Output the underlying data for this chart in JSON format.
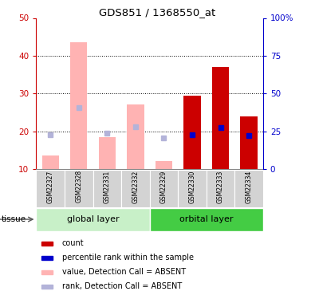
{
  "title": "GDS851 / 1368550_at",
  "samples": [
    "GSM22327",
    "GSM22328",
    "GSM22331",
    "GSM22332",
    "GSM22329",
    "GSM22330",
    "GSM22333",
    "GSM22334"
  ],
  "count_values": [
    null,
    null,
    null,
    null,
    null,
    29.5,
    37.0,
    24.0
  ],
  "rank_present_pct": [
    null,
    null,
    null,
    null,
    null,
    22.5,
    27.5,
    22.0
  ],
  "value_absent": [
    13.5,
    43.5,
    18.5,
    27.0,
    12.0,
    null,
    null,
    null
  ],
  "rank_absent_pct": [
    22.5,
    40.5,
    23.5,
    28.0,
    20.5,
    null,
    null,
    null
  ],
  "groups": [
    {
      "label": "global layer",
      "start": 0,
      "end": 4,
      "color": "#c8f0c8"
    },
    {
      "label": "orbital layer",
      "start": 4,
      "end": 8,
      "color": "#44cc44"
    }
  ],
  "ylim_left": [
    10,
    50
  ],
  "ylim_right": [
    0,
    100
  ],
  "yticks_left": [
    10,
    20,
    30,
    40,
    50
  ],
  "yticks_right": [
    0,
    25,
    50,
    75,
    100
  ],
  "yticklabels_right": [
    "0",
    "25",
    "50",
    "75",
    "100%"
  ],
  "bar_width": 0.6,
  "count_color": "#cc0000",
  "rank_present_color": "#0000cc",
  "value_absent_color": "#ffb3b3",
  "rank_absent_color": "#b3b3d9",
  "legend_items": [
    {
      "label": "count",
      "color": "#cc0000"
    },
    {
      "label": "percentile rank within the sample",
      "color": "#0000cc"
    },
    {
      "label": "value, Detection Call = ABSENT",
      "color": "#ffb3b3"
    },
    {
      "label": "rank, Detection Call = ABSENT",
      "color": "#b3b3d9"
    }
  ]
}
